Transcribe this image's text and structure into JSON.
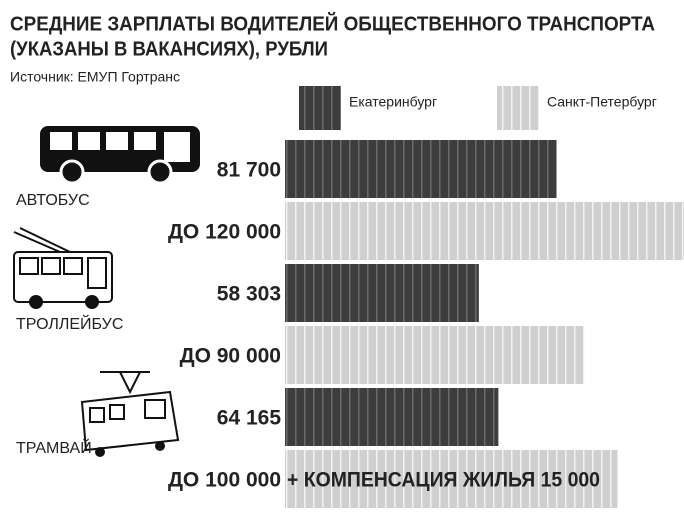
{
  "chart_data": {
    "type": "hbar",
    "title": [
      "СРЕДНИЕ ЗАРПЛАТЫ ВОДИТЕЛЕЙ ОБЩЕСТВЕННОГО ТРАНСПОРТА",
      "(УКАЗАНЫ В ВАКАНСИЯХ), РУБЛИ"
    ],
    "subtitle": "Источник: ЕМУП Гортранс",
    "categories": [
      "АВТОБУС",
      "ТРОЛЛЕЙБУС",
      "ТРАМВАЙ"
    ],
    "series": [
      {
        "name": "Екатеринбург",
        "color": "#3d3d3d",
        "values": [
          81700,
          58303,
          64165
        ],
        "value_labels": [
          "81 700",
          "58 303",
          "64 165"
        ]
      },
      {
        "name": "Санкт-Петербург",
        "color": "#cfcfcf",
        "values": [
          120000,
          90000,
          100000
        ],
        "value_labels": [
          "ДО 120 000",
          "ДО 90 000",
          "ДО 100 000"
        ]
      }
    ],
    "annotation": "+ КОМПЕНСАЦИЯ ЖИЛЬЯ 15 000"
  }
}
